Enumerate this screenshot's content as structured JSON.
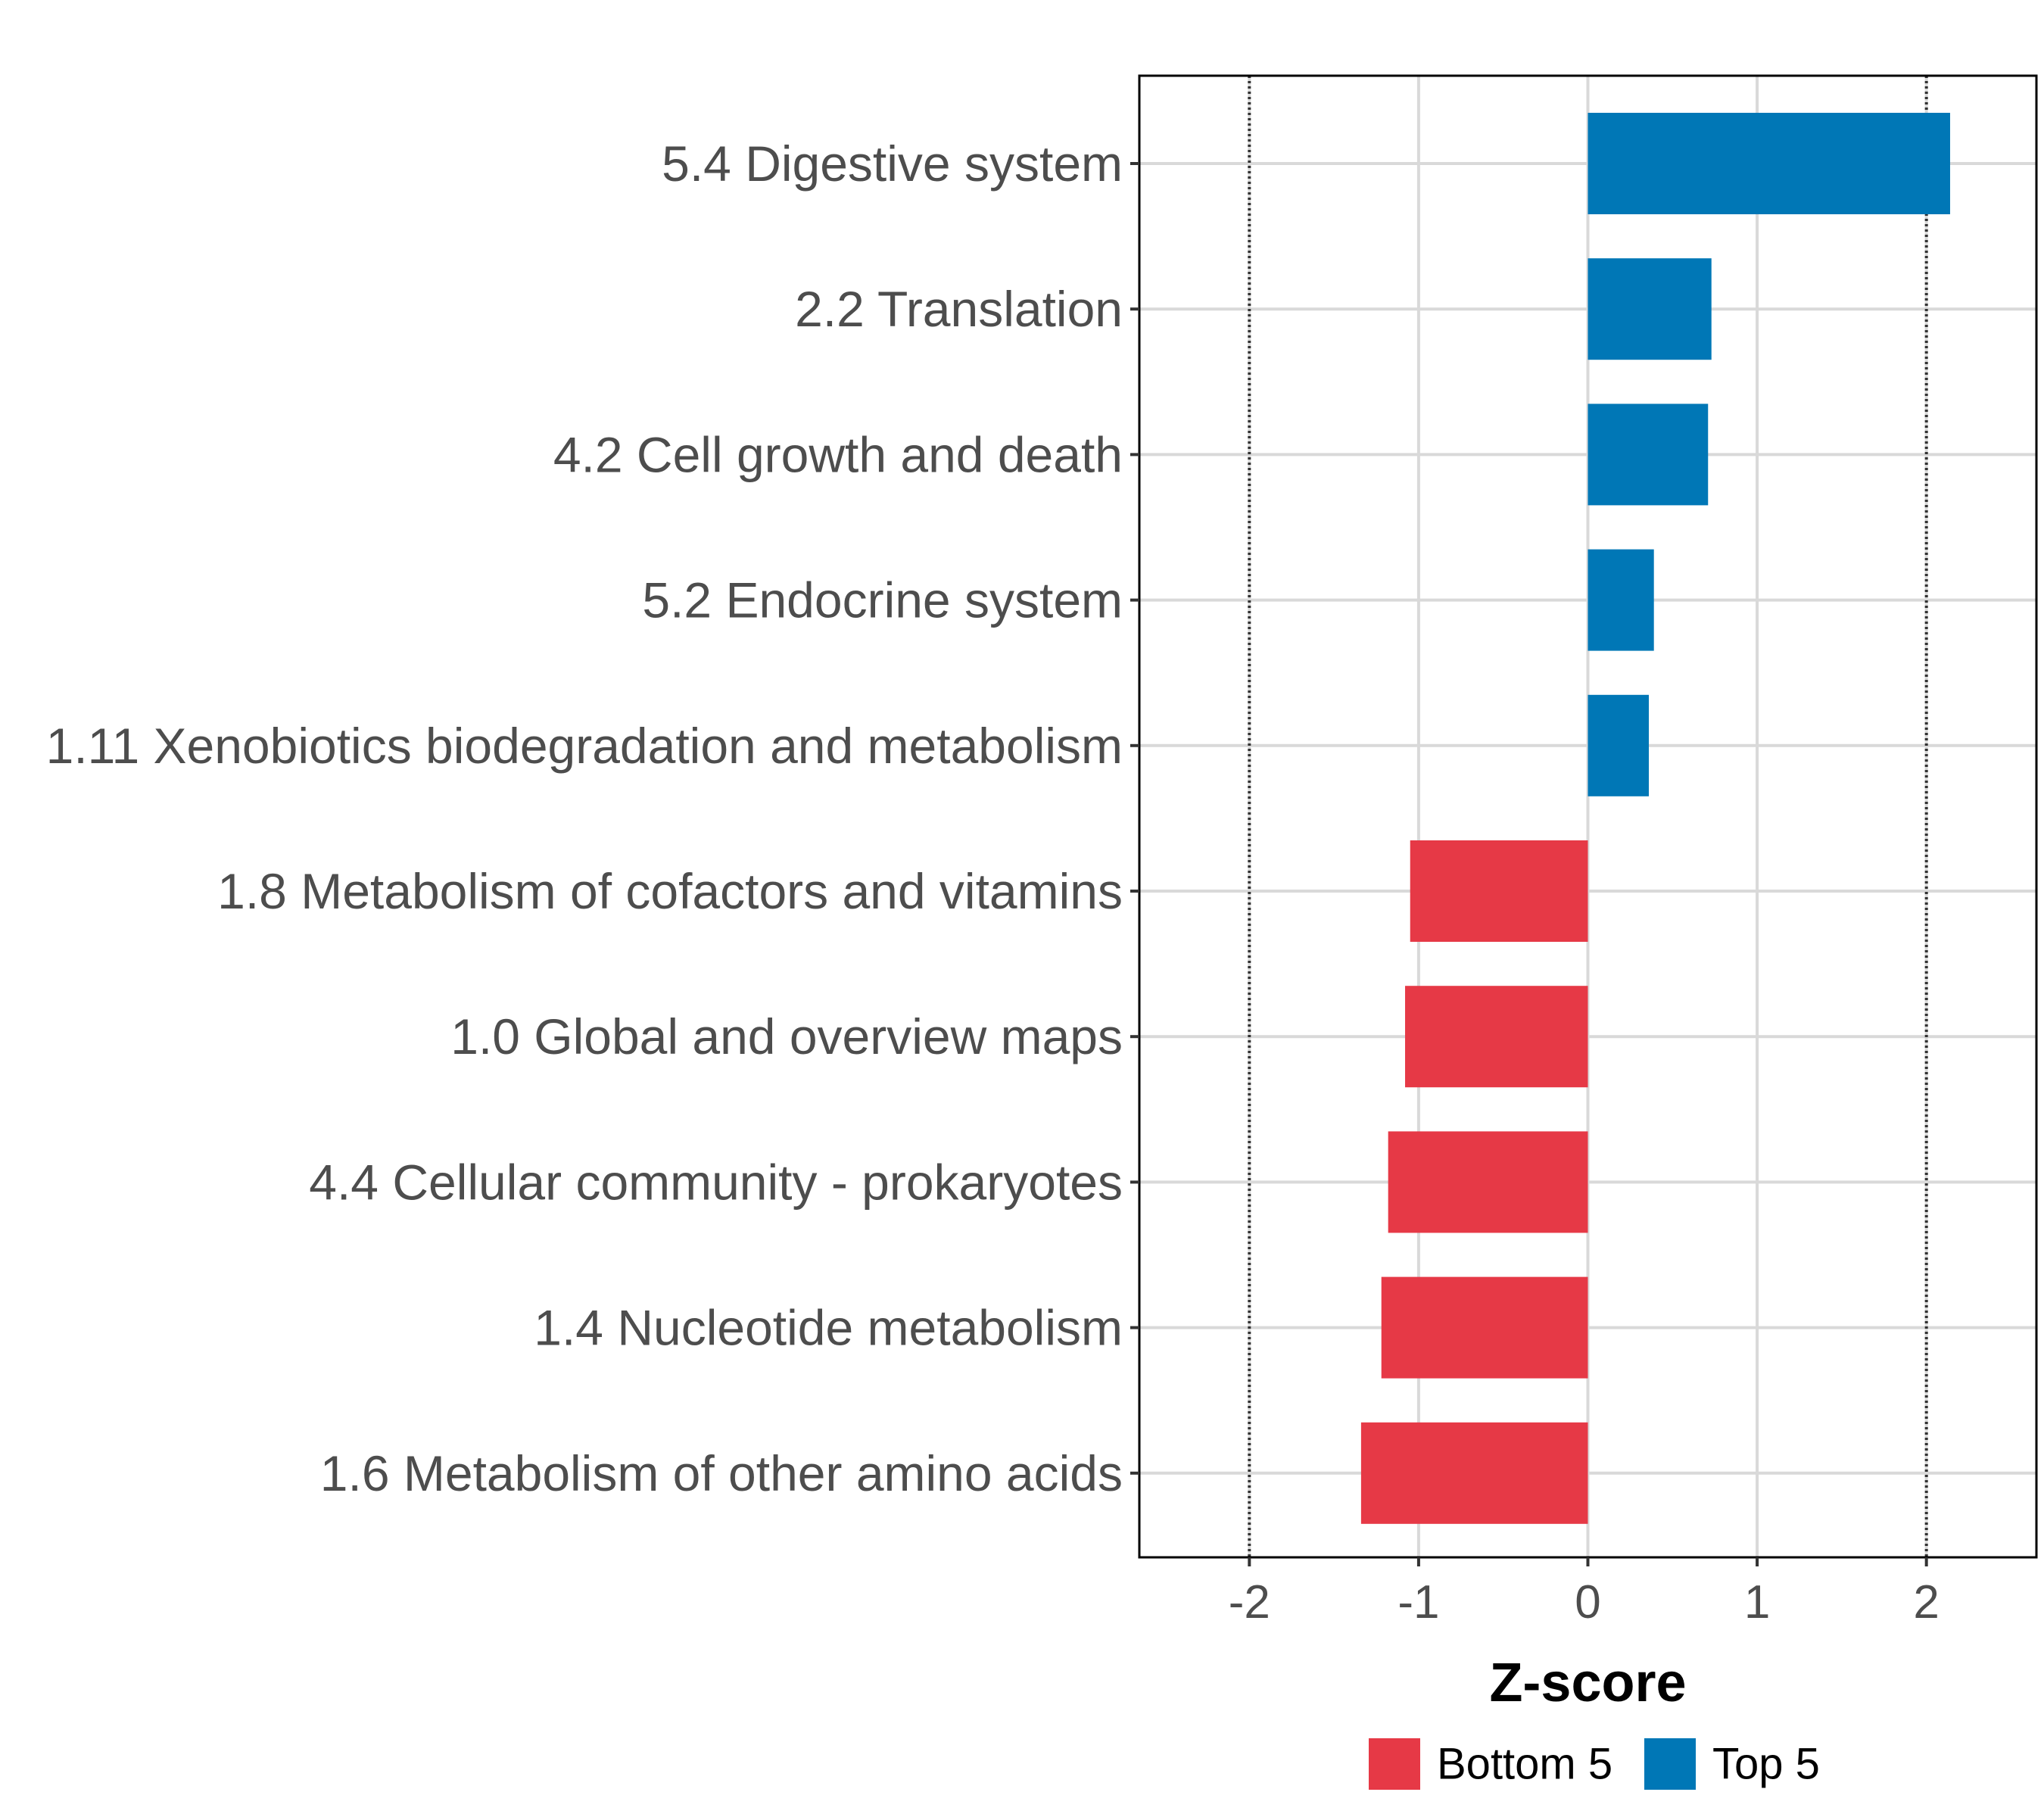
{
  "chart_data": {
    "type": "bar",
    "orientation": "horizontal",
    "title": "",
    "xlabel": "Z-score",
    "ylabel": "",
    "xlim": [
      -2.65,
      2.65
    ],
    "xticks": [
      -2,
      -1,
      0,
      1,
      2
    ],
    "xtick_labels": [
      "-2",
      "-1",
      "0",
      "1",
      "2"
    ],
    "reference_lines": [
      -2,
      2
    ],
    "grid": true,
    "categories": [
      "5.4 Digestive system",
      "2.2 Translation",
      "4.2 Cell growth and death",
      "5.2 Endocrine system",
      "1.11 Xenobiotics biodegradation and metabolism",
      "1.8 Metabolism of cofactors and vitamins",
      "1.0 Global and overview maps",
      "4.4 Cellular community - prokaryotes",
      "1.4 Nucleotide metabolism",
      "1.6 Metabolism of other amino acids"
    ],
    "values": [
      2.14,
      0.73,
      0.71,
      0.39,
      0.36,
      -1.05,
      -1.08,
      -1.18,
      -1.22,
      -1.34
    ],
    "groups": [
      "Top 5",
      "Top 5",
      "Top 5",
      "Top 5",
      "Top 5",
      "Bottom 5",
      "Bottom 5",
      "Bottom 5",
      "Bottom 5",
      "Bottom 5"
    ],
    "legend": {
      "position": "bottom",
      "entries": [
        {
          "label": "Bottom 5",
          "color": "#e63946"
        },
        {
          "label": "Top 5",
          "color": "#0077b6"
        }
      ]
    },
    "colors": {
      "Top 5": "#0077b6",
      "Bottom 5": "#e63946"
    }
  }
}
